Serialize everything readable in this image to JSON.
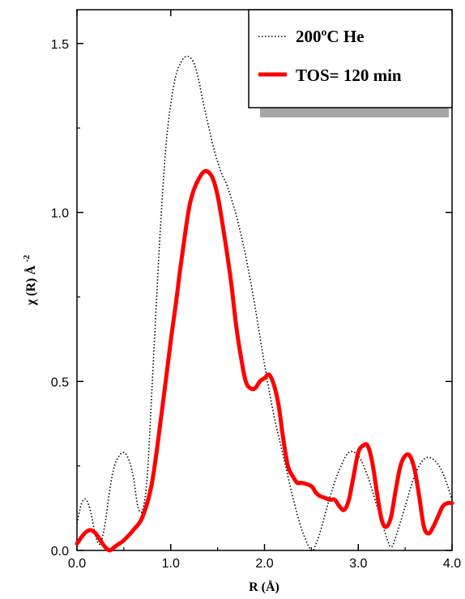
{
  "chart_data": {
    "type": "line",
    "xlabel": "R (Å)",
    "ylabel": "χ (R) Å",
    "ylabel_sup": "-2",
    "xlim": [
      0.0,
      4.0
    ],
    "ylim": [
      0.0,
      1.6
    ],
    "xticks": [
      0.0,
      1.0,
      2.0,
      3.0,
      4.0
    ],
    "xtick_labels": [
      "0.0",
      "1.0",
      "2.0",
      "3.0",
      "4.0"
    ],
    "yticks": [
      0.0,
      0.5,
      1.0,
      1.5
    ],
    "ytick_labels": [
      "0.0",
      "0.5",
      "1.0",
      "1.5"
    ],
    "grid": false,
    "legend_position": "top-right",
    "series": [
      {
        "name": "200ºC He",
        "color": "#000000",
        "style": "dotted",
        "x": [
          0.0,
          0.05,
          0.1,
          0.15,
          0.2,
          0.25,
          0.3,
          0.35,
          0.4,
          0.45,
          0.5,
          0.55,
          0.6,
          0.65,
          0.7,
          0.75,
          0.8,
          0.85,
          0.9,
          0.95,
          1.0,
          1.05,
          1.1,
          1.15,
          1.2,
          1.25,
          1.3,
          1.35,
          1.4,
          1.45,
          1.5,
          1.55,
          1.6,
          1.7,
          1.8,
          1.9,
          2.0,
          2.1,
          2.2,
          2.3,
          2.4,
          2.5,
          2.55,
          2.6,
          2.7,
          2.8,
          2.9,
          3.0,
          3.1,
          3.2,
          3.3,
          3.35,
          3.4,
          3.5,
          3.6,
          3.7,
          3.8,
          3.9,
          4.0
        ],
        "y": [
          0.08,
          0.14,
          0.15,
          0.11,
          0.04,
          0.02,
          0.08,
          0.18,
          0.25,
          0.28,
          0.29,
          0.27,
          0.22,
          0.13,
          0.12,
          0.22,
          0.48,
          0.75,
          1.0,
          1.2,
          1.32,
          1.4,
          1.44,
          1.46,
          1.46,
          1.44,
          1.39,
          1.32,
          1.26,
          1.2,
          1.15,
          1.11,
          1.08,
          0.99,
          0.87,
          0.72,
          0.55,
          0.4,
          0.28,
          0.16,
          0.06,
          0.0,
          0.02,
          0.06,
          0.16,
          0.24,
          0.29,
          0.28,
          0.22,
          0.13,
          0.04,
          0.01,
          0.04,
          0.13,
          0.22,
          0.27,
          0.27,
          0.23,
          0.15
        ]
      },
      {
        "name": "TOS= 120 min",
        "color": "#ff0000",
        "style": "solid",
        "x": [
          0.0,
          0.05,
          0.1,
          0.15,
          0.2,
          0.25,
          0.3,
          0.35,
          0.4,
          0.45,
          0.5,
          0.6,
          0.7,
          0.8,
          0.9,
          1.0,
          1.05,
          1.1,
          1.15,
          1.2,
          1.25,
          1.3,
          1.35,
          1.4,
          1.45,
          1.5,
          1.55,
          1.6,
          1.65,
          1.7,
          1.75,
          1.8,
          1.85,
          1.9,
          1.95,
          2.0,
          2.05,
          2.1,
          2.15,
          2.2,
          2.25,
          2.3,
          2.35,
          2.4,
          2.5,
          2.55,
          2.6,
          2.65,
          2.7,
          2.75,
          2.8,
          2.85,
          2.9,
          2.95,
          3.0,
          3.05,
          3.1,
          3.15,
          3.2,
          3.25,
          3.3,
          3.35,
          3.4,
          3.45,
          3.5,
          3.55,
          3.6,
          3.65,
          3.7,
          3.75,
          3.8,
          3.85,
          3.9,
          3.95,
          4.0
        ],
        "y": [
          0.02,
          0.04,
          0.055,
          0.06,
          0.05,
          0.03,
          0.01,
          0.0,
          0.01,
          0.02,
          0.03,
          0.06,
          0.1,
          0.2,
          0.4,
          0.62,
          0.72,
          0.83,
          0.93,
          1.02,
          1.07,
          1.1,
          1.12,
          1.12,
          1.1,
          1.05,
          0.97,
          0.88,
          0.78,
          0.66,
          0.57,
          0.5,
          0.48,
          0.48,
          0.5,
          0.51,
          0.52,
          0.49,
          0.43,
          0.33,
          0.25,
          0.22,
          0.2,
          0.2,
          0.19,
          0.17,
          0.16,
          0.155,
          0.15,
          0.15,
          0.13,
          0.12,
          0.15,
          0.22,
          0.29,
          0.31,
          0.31,
          0.26,
          0.17,
          0.09,
          0.07,
          0.1,
          0.18,
          0.25,
          0.28,
          0.28,
          0.24,
          0.16,
          0.07,
          0.05,
          0.07,
          0.1,
          0.13,
          0.14,
          0.14
        ]
      }
    ]
  }
}
